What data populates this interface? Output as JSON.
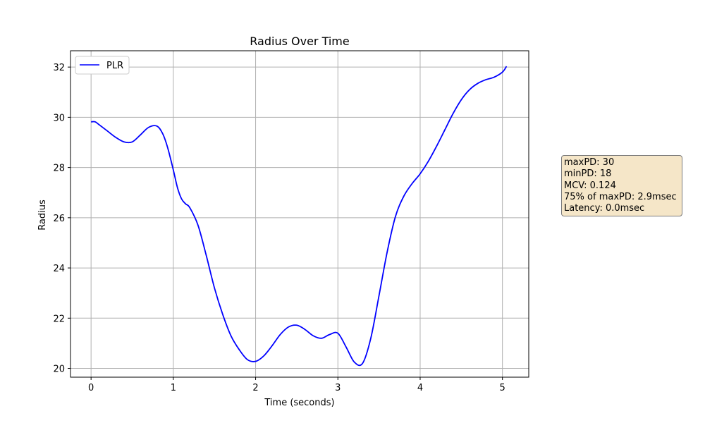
{
  "chart_data": {
    "type": "line",
    "title": "Radius Over Time",
    "xlabel": "Time (seconds)",
    "ylabel": "Radius",
    "xlim": [
      -0.25,
      5.32
    ],
    "ylim": [
      19.65,
      32.65
    ],
    "x_ticks": [
      0,
      1,
      2,
      3,
      4,
      5
    ],
    "y_ticks": [
      20,
      22,
      24,
      26,
      28,
      30,
      32
    ],
    "grid": true,
    "legend": "upper-left",
    "colors": {
      "series": "#0000ff",
      "grid": "#b0b0b0",
      "stats_bg": "#f5e6c8"
    },
    "series": [
      {
        "name": "PLR",
        "x": [
          0,
          0.05,
          0.1,
          0.2,
          0.3,
          0.4,
          0.5,
          0.6,
          0.7,
          0.8,
          0.87,
          0.93,
          1.0,
          1.05,
          1.1,
          1.15,
          1.2,
          1.3,
          1.4,
          1.5,
          1.6,
          1.7,
          1.8,
          1.9,
          2.0,
          2.1,
          2.2,
          2.3,
          2.4,
          2.5,
          2.6,
          2.7,
          2.8,
          2.9,
          3.0,
          3.1,
          3.2,
          3.3,
          3.4,
          3.5,
          3.6,
          3.7,
          3.8,
          3.9,
          4.0,
          4.1,
          4.2,
          4.3,
          4.4,
          4.5,
          4.6,
          4.7,
          4.8,
          4.9,
          5.0,
          5.05
        ],
        "y": [
          29.82,
          29.82,
          29.7,
          29.45,
          29.2,
          29.02,
          29.02,
          29.3,
          29.6,
          29.65,
          29.35,
          28.8,
          27.9,
          27.2,
          26.75,
          26.55,
          26.4,
          25.7,
          24.5,
          23.2,
          22.15,
          21.3,
          20.75,
          20.35,
          20.28,
          20.5,
          20.9,
          21.35,
          21.65,
          21.72,
          21.55,
          21.3,
          21.2,
          21.35,
          21.4,
          20.85,
          20.25,
          20.2,
          21.2,
          22.9,
          24.65,
          26.05,
          26.85,
          27.35,
          27.75,
          28.25,
          28.85,
          29.5,
          30.15,
          30.7,
          31.1,
          31.35,
          31.5,
          31.6,
          31.8,
          32.03
        ]
      }
    ]
  },
  "stats": [
    "maxPD: 30",
    "minPD: 18",
    "MCV: 0.124",
    "75% of maxPD: 2.9msec",
    "Latency: 0.0msec"
  ]
}
